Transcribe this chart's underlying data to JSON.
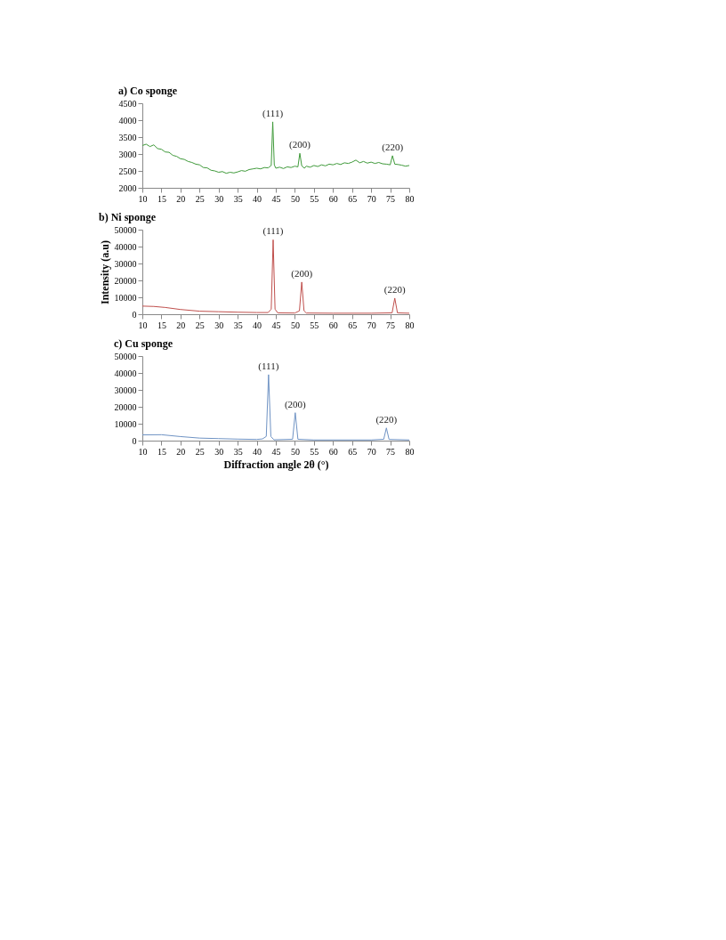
{
  "chart_data": [
    {
      "type": "line",
      "title": "a) Co sponge",
      "color": "#3f9a3a",
      "x": [
        10,
        11,
        12,
        13,
        14,
        15,
        16,
        17,
        18,
        19,
        20,
        21,
        22,
        23,
        24,
        25,
        26,
        27,
        28,
        29,
        30,
        31,
        32,
        33,
        34,
        35,
        36,
        37,
        38,
        39,
        40,
        41,
        42,
        43,
        43.8,
        44.2,
        44.6,
        45,
        46,
        47,
        48,
        49,
        50,
        50.8,
        51.3,
        51.8,
        52.5,
        53,
        54,
        55,
        56,
        57,
        58,
        59,
        60,
        61,
        62,
        63,
        64,
        65,
        66,
        67,
        68,
        69,
        70,
        71,
        72,
        73,
        74,
        75,
        75.6,
        76.2,
        77,
        78,
        79,
        80
      ],
      "values": [
        3250,
        3290,
        3220,
        3270,
        3160,
        3140,
        3060,
        3050,
        2960,
        2930,
        2860,
        2840,
        2780,
        2750,
        2700,
        2680,
        2600,
        2590,
        2520,
        2500,
        2460,
        2480,
        2430,
        2460,
        2440,
        2470,
        2510,
        2490,
        2540,
        2560,
        2580,
        2560,
        2600,
        2590,
        2660,
        3950,
        2680,
        2580,
        2610,
        2570,
        2620,
        2600,
        2640,
        2620,
        3020,
        2650,
        2580,
        2640,
        2610,
        2660,
        2630,
        2680,
        2650,
        2700,
        2680,
        2720,
        2690,
        2740,
        2720,
        2760,
        2820,
        2740,
        2780,
        2730,
        2760,
        2720,
        2750,
        2710,
        2700,
        2680,
        2950,
        2700,
        2690,
        2670,
        2640,
        2660
      ],
      "xlim": [
        10,
        80
      ],
      "xticks": [
        10,
        15,
        20,
        25,
        30,
        35,
        40,
        45,
        50,
        55,
        60,
        65,
        70,
        75,
        80
      ],
      "ylim": [
        2000,
        4500
      ],
      "yticks": [
        2000,
        2500,
        3000,
        3500,
        4000,
        4500
      ],
      "annotations": [
        {
          "text": "(111)",
          "x": 44.2,
          "y": 3950
        },
        {
          "text": "(200)",
          "x": 51.3,
          "y": 3020
        },
        {
          "text": "(220)",
          "x": 75.6,
          "y": 2950
        }
      ]
    },
    {
      "type": "line",
      "title": "b) Ni sponge",
      "ylabel": "Intensity (a.u)",
      "color": "#c0504d",
      "x": [
        10,
        13,
        16,
        20,
        25,
        30,
        35,
        40,
        43,
        43.8,
        44.3,
        44.8,
        45.5,
        50,
        51.2,
        51.8,
        52.4,
        53,
        60,
        70,
        75.5,
        76.2,
        76.9,
        80
      ],
      "values": [
        4800,
        4600,
        4000,
        2800,
        1800,
        1500,
        1200,
        1000,
        1000,
        3000,
        44000,
        3000,
        800,
        700,
        2000,
        19000,
        2000,
        700,
        600,
        600,
        800,
        9500,
        800,
        600
      ],
      "xlim": [
        10,
        80
      ],
      "xticks": [
        10,
        15,
        20,
        25,
        30,
        35,
        40,
        45,
        50,
        55,
        60,
        65,
        70,
        75,
        80
      ],
      "ylim": [
        0,
        50000
      ],
      "yticks": [
        0,
        10000,
        20000,
        30000,
        40000,
        50000
      ],
      "annotations": [
        {
          "text": "(111)",
          "x": 44.3,
          "y": 44000
        },
        {
          "text": "(200)",
          "x": 51.8,
          "y": 19000
        },
        {
          "text": "(220)",
          "x": 76.2,
          "y": 9500
        }
      ]
    },
    {
      "type": "line",
      "title": "c) Cu sponge",
      "xlabel": "Diffraction angle 2θ (°)",
      "color": "#6f93c4",
      "x": [
        10,
        15,
        20,
        25,
        30,
        35,
        40,
        41.5,
        42.5,
        43.1,
        43.7,
        44.5,
        49.4,
        50.1,
        50.8,
        55,
        70,
        73.3,
        74,
        74.7,
        80
      ],
      "values": [
        3400,
        3500,
        2400,
        1500,
        1200,
        900,
        700,
        1000,
        2500,
        39000,
        2500,
        500,
        800,
        16500,
        800,
        400,
        400,
        800,
        7500,
        700,
        400
      ],
      "xlim": [
        10,
        80
      ],
      "xticks": [
        10,
        15,
        20,
        25,
        30,
        35,
        40,
        45,
        50,
        55,
        60,
        65,
        70,
        75,
        80
      ],
      "ylim": [
        0,
        50000
      ],
      "yticks": [
        0,
        10000,
        20000,
        30000,
        40000,
        50000
      ],
      "annotations": [
        {
          "text": "(111)",
          "x": 43.1,
          "y": 39000
        },
        {
          "text": "(200)",
          "x": 50.1,
          "y": 16500
        },
        {
          "text": "(220)",
          "x": 74,
          "y": 7500
        }
      ]
    }
  ]
}
